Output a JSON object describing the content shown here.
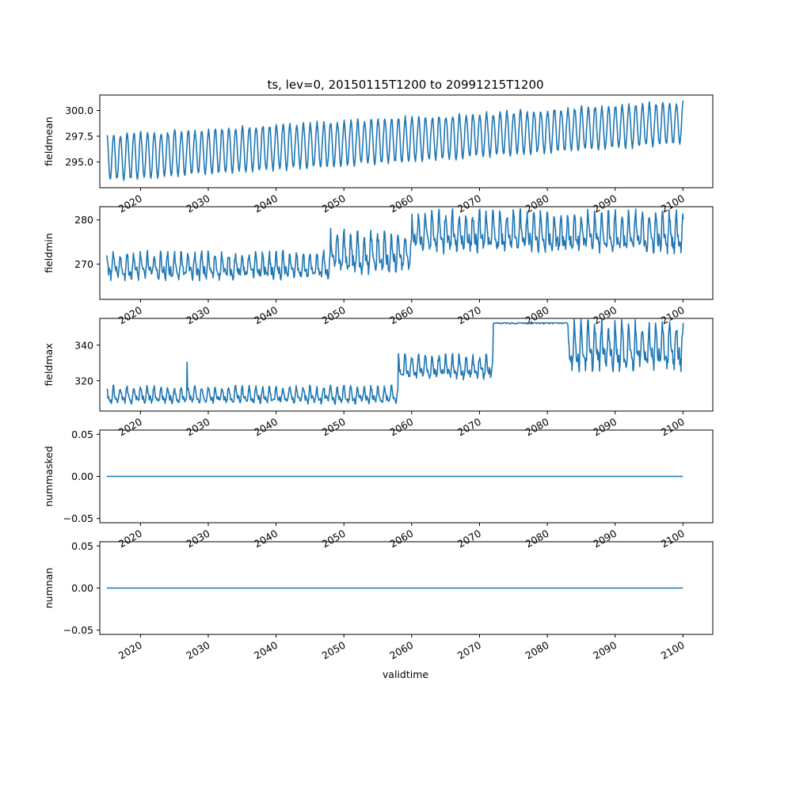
{
  "figure_title": "ts, lev=0, 20150115T1200 to 20991215T1200",
  "xlabel": "validtime",
  "line_color": "#1f77b4",
  "x_tick_labels": [
    "2020",
    "2030",
    "2040",
    "2050",
    "2060",
    "2070",
    "2080",
    "2090",
    "2100"
  ],
  "chart_data": [
    {
      "type": "line",
      "name": "fieldmean",
      "ylabel": "fieldmean",
      "xlim": [
        2014.0,
        2104.4
      ],
      "ylim": [
        292.5,
        301.5
      ],
      "x_ticks": [
        2020,
        2030,
        2040,
        2050,
        2060,
        2070,
        2080,
        2090,
        2100
      ],
      "y_ticks": [
        295.0,
        297.5,
        300.0
      ],
      "y_tick_labels": [
        "295.0",
        "297.5",
        "300.0"
      ],
      "grid": false,
      "x_range": [
        2015.04,
        2100.0
      ],
      "trend_min": [
        293.2,
        296.8
      ],
      "trend_max": [
        297.6,
        300.8
      ]
    },
    {
      "type": "line",
      "name": "fieldmin",
      "ylabel": "fieldmin",
      "xlim": [
        2014.0,
        2104.4
      ],
      "ylim": [
        262.0,
        283.0
      ],
      "x_ticks": [
        2020,
        2030,
        2040,
        2050,
        2060,
        2070,
        2080,
        2090,
        2100
      ],
      "y_ticks": [
        270,
        280
      ],
      "y_tick_labels": [
        "270",
        "280"
      ],
      "grid": false,
      "x_range": [
        2015.04,
        2100.0
      ],
      "segments": [
        {
          "x": [
            2015.04,
            2048
          ],
          "low": 266.0,
          "high": 272.5
        },
        {
          "x": [
            2048,
            2060
          ],
          "low": 267.0,
          "high": 277.0
        },
        {
          "x": [
            2060,
            2100
          ],
          "low": 272.0,
          "high": 281.5
        }
      ]
    },
    {
      "type": "line",
      "name": "fieldmax",
      "ylabel": "fieldmax",
      "xlim": [
        2014.0,
        2104.4
      ],
      "ylim": [
        303.0,
        355.0
      ],
      "x_ticks": [
        2020,
        2030,
        2040,
        2050,
        2060,
        2070,
        2080,
        2090,
        2100
      ],
      "y_ticks": [
        320,
        340
      ],
      "y_tick_labels": [
        "320",
        "340"
      ],
      "grid": false,
      "x_range": [
        2015.04,
        2100.0
      ],
      "spike": {
        "x": 2026.9,
        "y": 330.5
      },
      "segments": [
        {
          "x": [
            2015.04,
            2058
          ],
          "low": 306.5,
          "high": 316.5
        },
        {
          "x": [
            2058,
            2072
          ],
          "low": 320.0,
          "high": 334.0
        },
        {
          "x": [
            2072,
            2083
          ],
          "low": 345.0,
          "high": 352.5
        },
        {
          "x": [
            2083,
            2100
          ],
          "low": 324.0,
          "high": 352.0
        }
      ]
    },
    {
      "type": "line",
      "name": "nummasked",
      "ylabel": "nummasked",
      "xlim": [
        2014.0,
        2104.4
      ],
      "ylim": [
        -0.055,
        0.055
      ],
      "x_ticks": [
        2020,
        2030,
        2040,
        2050,
        2060,
        2070,
        2080,
        2090,
        2100
      ],
      "y_ticks": [
        -0.05,
        0.0,
        0.05
      ],
      "y_tick_labels": [
        "−0.05",
        "0.00",
        "0.05"
      ],
      "grid": false,
      "x": [
        2015.04,
        2100.0
      ],
      "y": [
        0.0,
        0.0
      ]
    },
    {
      "type": "line",
      "name": "numnan",
      "ylabel": "numnan",
      "xlim": [
        2014.0,
        2104.4
      ],
      "ylim": [
        -0.055,
        0.055
      ],
      "x_ticks": [
        2020,
        2030,
        2040,
        2050,
        2060,
        2070,
        2080,
        2090,
        2100
      ],
      "y_ticks": [
        -0.05,
        0.0,
        0.05
      ],
      "y_tick_labels": [
        "−0.05",
        "0.00",
        "0.05"
      ],
      "grid": false,
      "x": [
        2015.04,
        2100.0
      ],
      "y": [
        0.0,
        0.0
      ]
    }
  ]
}
